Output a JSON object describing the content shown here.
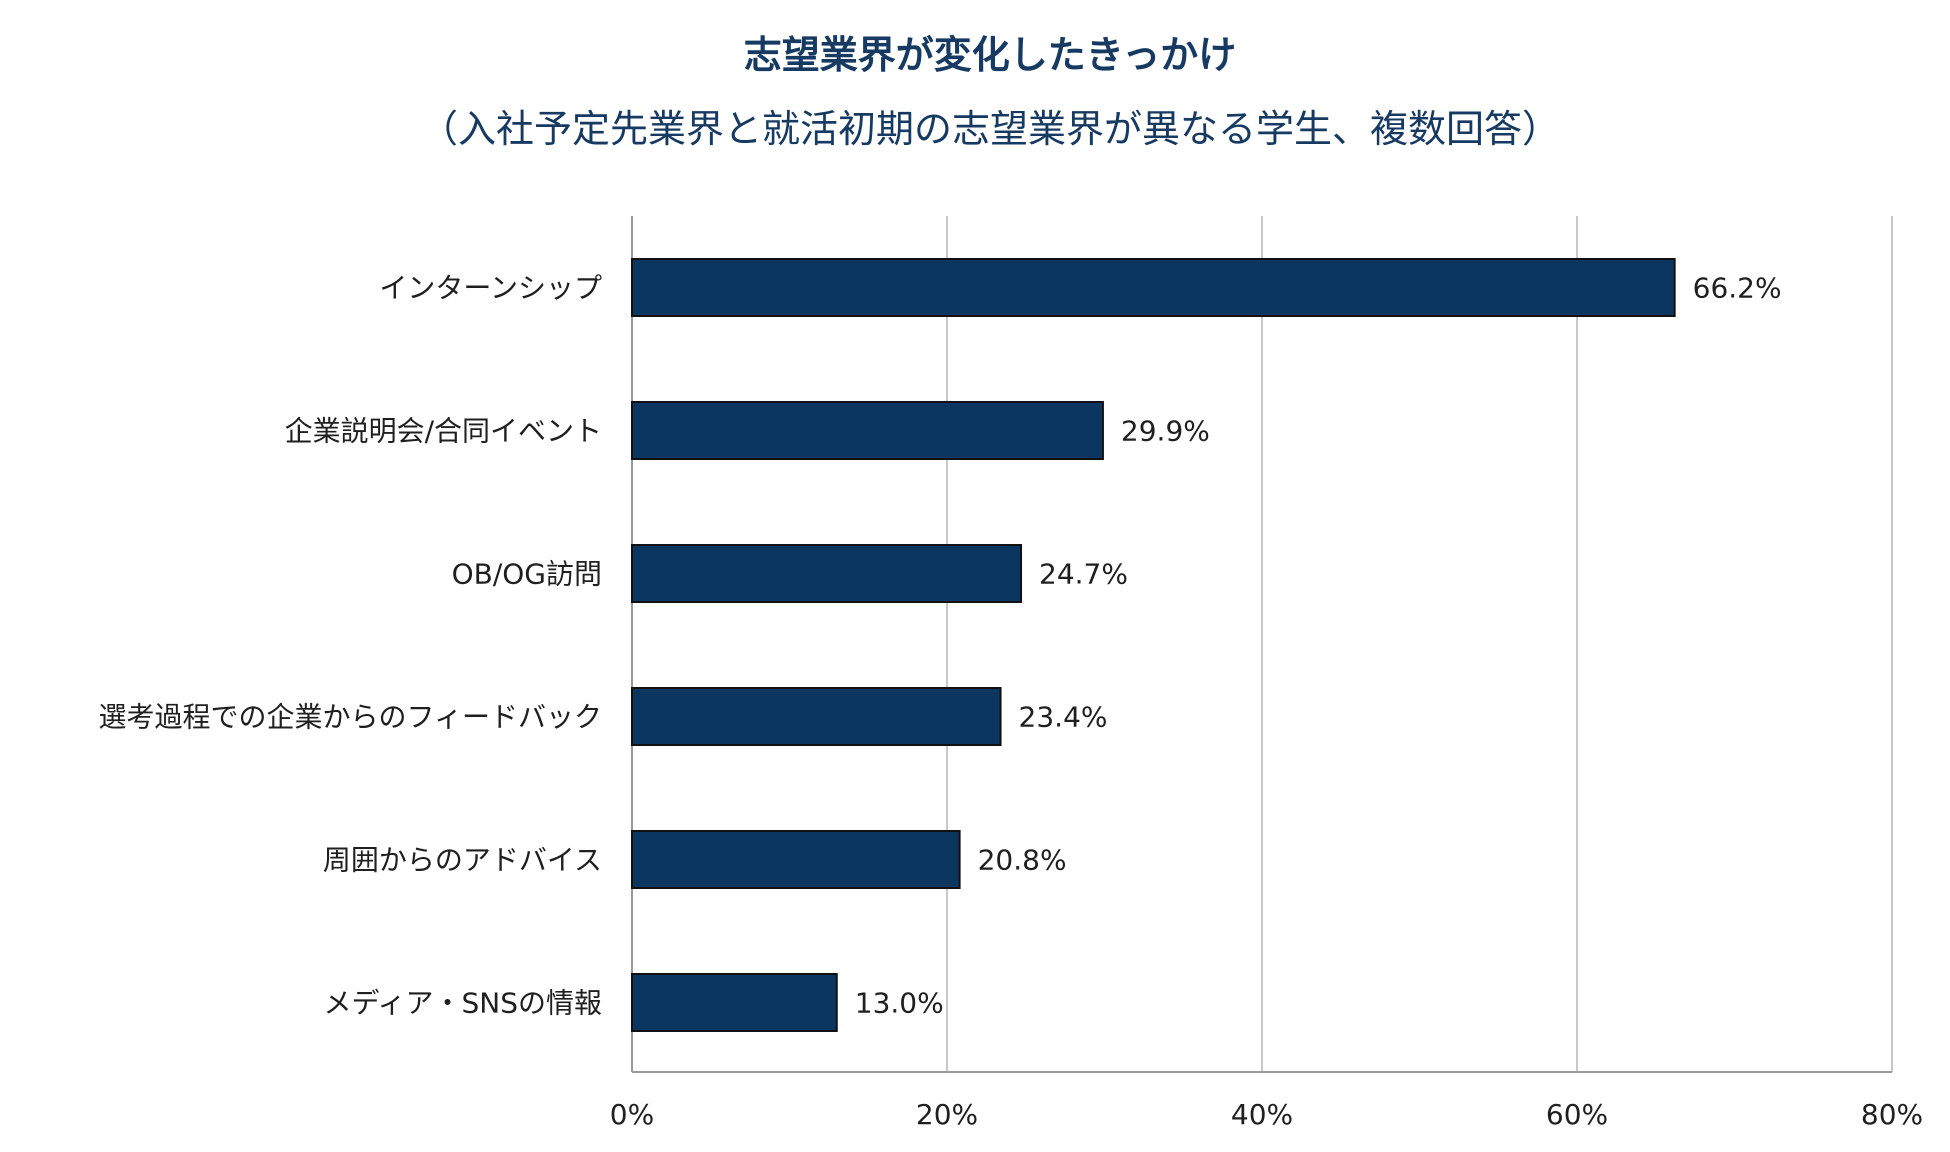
{
  "chart_data": {
    "type": "bar",
    "orientation": "horizontal",
    "title": "志望業界が変化したきっかけ",
    "subtitle": "（入社予定先業界と就活初期の志望業界が異なる学生、複数回答）",
    "categories": [
      "インターンシップ",
      "企業説明会/合同イベント",
      "OB/OG訪問",
      "選考過程での企業からのフィードバック",
      "周囲からのアドバイス",
      "メディア・SNSの情報"
    ],
    "values": [
      66.2,
      29.9,
      24.7,
      23.4,
      20.8,
      13.0
    ],
    "value_labels": [
      "66.2%",
      "29.9%",
      "24.7%",
      "23.4%",
      "20.8%",
      "13.0%"
    ],
    "xlim": [
      0,
      80
    ],
    "x_ticks": [
      0,
      20,
      40,
      60,
      80
    ],
    "x_tick_labels": [
      "0%",
      "20%",
      "40%",
      "60%",
      "80%"
    ],
    "xlabel": "",
    "ylabel": "",
    "grid": true,
    "legend": "none"
  },
  "colors": {
    "bar_fill": "#0b3660",
    "bar_stroke": "#111111",
    "title": "#173a63",
    "grid": "#c8c8c8",
    "axis": "#9a9a9a",
    "text": "#1f1f1f"
  }
}
